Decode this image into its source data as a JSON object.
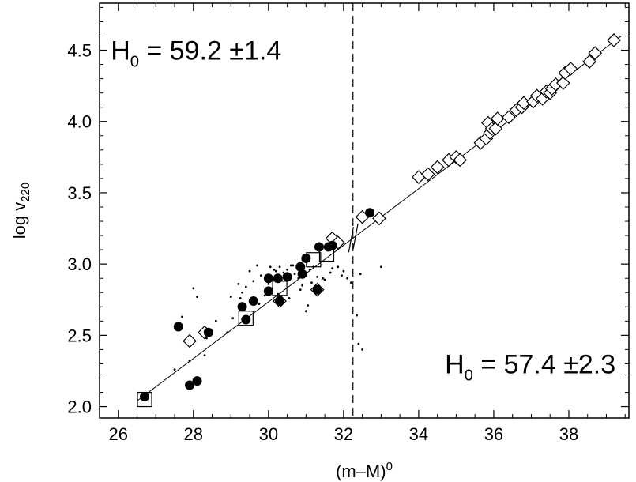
{
  "chart_data": {
    "type": "scatter",
    "title": "",
    "xlabel": "(m–M)",
    "xlabel_sup": "0",
    "ylabel": "log v",
    "ylabel_sub": "220",
    "xlim": [
      25.5,
      39.6
    ],
    "ylim": [
      1.92,
      4.83
    ],
    "xticks": [
      26,
      28,
      30,
      32,
      34,
      36,
      38
    ],
    "xtick_labels": [
      "26",
      "28",
      "30",
      "32",
      "34",
      "36",
      "38"
    ],
    "yticks": [
      2.0,
      2.5,
      3.0,
      3.5,
      4.0,
      4.5
    ],
    "ytick_labels": [
      "2.0",
      "2.5",
      "3.0",
      "3.5",
      "4.0",
      "4.5"
    ],
    "grid": false,
    "legend": "none",
    "divider_x": 32.25,
    "fit_line": {
      "x": [
        26.5,
        39.4
      ],
      "y": [
        2.04,
        4.6
      ]
    },
    "annotations": [
      {
        "text_main": "H",
        "text_sub": "0",
        "text_value": " = 59.2 ±1.4",
        "at": [
          25.8,
          4.5
        ]
      },
      {
        "text_main": "H",
        "text_sub": "0",
        "text_value": " = 57.4 ±2.3",
        "at": [
          34.7,
          2.3
        ]
      }
    ],
    "series": [
      {
        "marker": "filled-circle",
        "x": [
          26.7,
          27.6,
          27.9,
          28.1,
          28.4,
          29.3,
          29.4,
          29.6,
          30.0,
          30.0,
          30.25,
          30.3,
          30.5,
          30.85,
          30.9,
          31.0,
          31.3,
          31.35,
          31.6,
          31.7,
          32.7
        ],
        "y": [
          2.07,
          2.56,
          2.15,
          2.18,
          2.52,
          2.7,
          2.61,
          2.74,
          2.81,
          2.9,
          2.9,
          2.74,
          2.91,
          2.98,
          2.93,
          3.04,
          2.82,
          3.12,
          3.12,
          3.13,
          3.36
        ]
      },
      {
        "marker": "open-square",
        "x": [
          26.7,
          29.4,
          30.3,
          31.2,
          31.55
        ],
        "y": [
          2.05,
          2.62,
          2.83,
          3.03,
          3.07
        ]
      },
      {
        "marker": "open-diamond",
        "x": [
          27.9,
          28.3,
          30.3,
          31.3,
          31.7,
          31.85,
          32.5,
          32.95,
          34.0,
          34.25,
          34.5,
          34.8,
          35.0,
          35.1,
          35.65,
          35.8,
          35.85,
          35.9,
          35.95,
          36.05,
          36.1,
          36.4,
          36.6,
          36.75,
          36.8,
          37.05,
          37.15,
          37.3,
          37.4,
          37.5,
          37.55,
          37.65,
          37.85,
          37.9,
          38.05,
          38.55,
          38.7,
          39.2
        ],
        "y": [
          2.46,
          2.52,
          2.74,
          2.82,
          3.18,
          3.15,
          3.33,
          3.32,
          3.61,
          3.63,
          3.68,
          3.73,
          3.75,
          3.73,
          3.85,
          3.88,
          3.99,
          3.92,
          3.95,
          3.95,
          4.02,
          4.03,
          4.08,
          4.1,
          4.13,
          4.14,
          4.18,
          4.16,
          4.21,
          4.2,
          4.23,
          4.26,
          4.27,
          4.34,
          4.37,
          4.42,
          4.48,
          4.57
        ]
      },
      {
        "marker": "dot",
        "x": [
          27.5,
          27.7,
          27.9,
          28.1,
          28.3,
          28.6,
          28.9,
          29.0,
          29.2,
          29.3,
          29.4,
          29.5,
          29.6,
          29.7,
          29.8,
          29.9,
          30.0,
          30.1,
          30.15,
          30.2,
          30.3,
          30.4,
          30.45,
          30.5,
          30.6,
          30.7,
          30.8,
          30.9,
          31.0,
          31.05,
          31.1,
          31.2,
          31.3,
          31.5,
          31.7,
          32.0,
          32.2,
          32.4,
          32.5,
          33.0,
          28.0,
          28.35,
          29.05,
          29.25,
          29.75,
          29.95,
          30.05,
          30.25,
          30.35,
          30.55,
          30.65,
          30.85,
          31.15,
          31.45,
          31.65,
          31.85,
          31.95,
          32.1,
          32.35,
          32.45
        ],
        "y": [
          2.26,
          2.63,
          2.32,
          2.77,
          2.36,
          2.6,
          2.52,
          2.77,
          2.86,
          2.8,
          2.84,
          2.95,
          2.88,
          2.99,
          2.92,
          2.78,
          2.86,
          2.83,
          2.96,
          2.95,
          2.98,
          2.94,
          2.92,
          2.96,
          2.99,
          2.93,
          2.9,
          2.85,
          2.67,
          2.71,
          2.96,
          2.98,
          2.91,
          2.89,
          2.97,
          2.95,
          2.87,
          2.44,
          2.4,
          2.98,
          2.83,
          2.48,
          2.62,
          2.76,
          2.72,
          2.88,
          2.98,
          2.79,
          2.89,
          2.76,
          2.99,
          2.82,
          2.87,
          2.9,
          2.94,
          2.98,
          2.92,
          2.9,
          2.64,
          2.93
        ]
      }
    ]
  }
}
